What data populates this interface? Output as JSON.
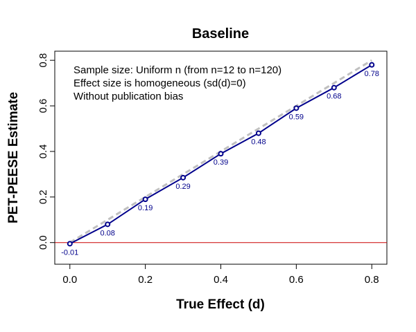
{
  "chart_data": {
    "type": "line",
    "title": "Baseline",
    "xlabel": "True Effect (d)",
    "ylabel": "PET-PEESE Estimate",
    "xlim": [
      -0.04,
      0.84
    ],
    "ylim": [
      -0.095,
      0.84
    ],
    "xticks": [
      {
        "value": 0.0,
        "label": "0.0"
      },
      {
        "value": 0.2,
        "label": "0.2"
      },
      {
        "value": 0.4,
        "label": "0.4"
      },
      {
        "value": 0.6,
        "label": "0.6"
      },
      {
        "value": 0.8,
        "label": "0.8"
      }
    ],
    "yticks": [
      {
        "value": 0.0,
        "label": "0.0"
      },
      {
        "value": 0.2,
        "label": "0.2"
      },
      {
        "value": 0.4,
        "label": "0.4"
      },
      {
        "value": 0.6,
        "label": "0.6"
      },
      {
        "value": 0.8,
        "label": "0.8"
      }
    ],
    "annotations": [
      "Sample size: Uniform n (from n=12 to n=120)",
      "Effect size is homogeneous (sd(d)=0)",
      "Without publication bias"
    ],
    "series": [
      {
        "x": [
          0.0,
          0.1,
          0.2,
          0.3,
          0.4,
          0.5,
          0.6,
          0.7,
          0.8
        ],
        "y": [
          -0.005,
          0.08,
          0.19,
          0.285,
          0.39,
          0.48,
          0.59,
          0.68,
          0.78
        ],
        "labels": [
          "-0.01",
          "0.08",
          "0.19",
          "0.29",
          "0.39",
          "0.48",
          "0.59",
          "0.68",
          "0.78"
        ],
        "color": "#00008b"
      }
    ],
    "identity_line": {
      "color": "#c0c0c0",
      "style": "dashed"
    },
    "zero_line": {
      "y": 0,
      "color": "#cc0000"
    },
    "grid": false
  }
}
